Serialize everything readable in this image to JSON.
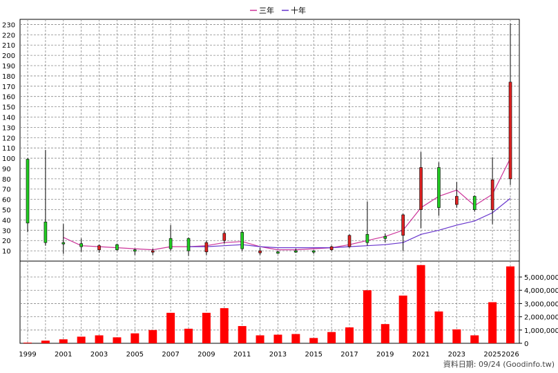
{
  "chart_data": [
    {
      "type": "candlestick",
      "legend": [
        "三年",
        "十年"
      ],
      "legend_position": "top-center",
      "grid": true,
      "ylim": [
        0,
        235
      ],
      "y_ticks": [
        10,
        20,
        30,
        40,
        50,
        60,
        70,
        80,
        90,
        100,
        110,
        120,
        130,
        140,
        150,
        160,
        170,
        180,
        190,
        200,
        210,
        220,
        230
      ],
      "x": [
        1999,
        2000,
        2001,
        2002,
        2003,
        2004,
        2005,
        2006,
        2007,
        2008,
        2009,
        2010,
        2011,
        2012,
        2013,
        2014,
        2015,
        2016,
        2017,
        2018,
        2019,
        2020,
        2021,
        2022,
        2023,
        2024,
        2025,
        2026
      ],
      "x_tick_labels": [
        "1999",
        "2001",
        "2003",
        "2005",
        "2007",
        "2009",
        "2011",
        "2013",
        "2015",
        "2017",
        "2019",
        "2021",
        "2023",
        "2025",
        "2026"
      ],
      "candles": [
        {
          "x": 1999,
          "open": 37,
          "high": 100,
          "low": 28,
          "close": 99
        },
        {
          "x": 2000,
          "open": 18,
          "high": 108,
          "low": 15,
          "close": 38
        },
        {
          "x": 2001,
          "open": 18,
          "high": 36,
          "low": 7,
          "close": 18
        },
        {
          "x": 2002,
          "open": 14,
          "high": 22,
          "low": 9,
          "close": 17
        },
        {
          "x": 2003,
          "open": 15,
          "high": 16,
          "low": 8,
          "close": 11
        },
        {
          "x": 2004,
          "open": 11,
          "high": 17,
          "low": 10,
          "close": 16
        },
        {
          "x": 2005,
          "open": 11,
          "high": 12,
          "low": 6,
          "close": 11
        },
        {
          "x": 2006,
          "open": 10,
          "high": 12,
          "low": 6,
          "close": 9
        },
        {
          "x": 2007,
          "open": 12,
          "high": 35,
          "low": 10,
          "close": 22
        },
        {
          "x": 2008,
          "open": 10,
          "high": 23,
          "low": 5,
          "close": 22
        },
        {
          "x": 2009,
          "open": 18,
          "high": 20,
          "low": 6,
          "close": 9
        },
        {
          "x": 2010,
          "open": 27,
          "high": 29,
          "low": 17,
          "close": 20
        },
        {
          "x": 2011,
          "open": 12,
          "high": 30,
          "low": 10,
          "close": 28
        },
        {
          "x": 2012,
          "open": 10,
          "high": 13,
          "low": 6,
          "close": 8
        },
        {
          "x": 2013,
          "open": 9,
          "high": 10,
          "low": 7,
          "close": 9
        },
        {
          "x": 2014,
          "open": 10,
          "high": 12,
          "low": 8,
          "close": 10
        },
        {
          "x": 2015,
          "open": 10,
          "high": 11,
          "low": 7,
          "close": 10
        },
        {
          "x": 2016,
          "open": 14,
          "high": 15,
          "low": 10,
          "close": 11
        },
        {
          "x": 2017,
          "open": 25,
          "high": 26,
          "low": 13,
          "close": 14
        },
        {
          "x": 2018,
          "open": 18,
          "high": 58,
          "low": 15,
          "close": 26
        },
        {
          "x": 2019,
          "open": 22,
          "high": 27,
          "low": 18,
          "close": 24
        },
        {
          "x": 2020,
          "open": 45,
          "high": 46,
          "low": 10,
          "close": 25
        },
        {
          "x": 2021,
          "open": 91,
          "high": 106,
          "low": 32,
          "close": 50
        },
        {
          "x": 2022,
          "open": 52,
          "high": 96,
          "low": 44,
          "close": 91
        },
        {
          "x": 2023,
          "open": 63,
          "high": 77,
          "low": 52,
          "close": 55
        },
        {
          "x": 2024,
          "open": 50,
          "high": 64,
          "low": 48,
          "close": 63
        },
        {
          "x": 2025,
          "open": 79,
          "high": 101,
          "low": 36,
          "close": 50
        },
        {
          "x": 2026,
          "open": 174,
          "high": 231,
          "low": 74,
          "close": 80
        }
      ],
      "series": [
        {
          "name": "三年",
          "color": "#cc3399",
          "x": [
            2001,
            2002,
            2003,
            2004,
            2005,
            2006,
            2007,
            2008,
            2009,
            2010,
            2011,
            2012,
            2013,
            2014,
            2015,
            2016,
            2017,
            2018,
            2019,
            2020,
            2021,
            2022,
            2023,
            2024,
            2025,
            2026
          ],
          "values": [
            23,
            15,
            14,
            13,
            12,
            11,
            14,
            14,
            15,
            18,
            19,
            14,
            11,
            11,
            12,
            13,
            16,
            20,
            24,
            30,
            52,
            63,
            69,
            54,
            65,
            100
          ]
        },
        {
          "name": "十年",
          "color": "#6633cc",
          "x": [
            2008,
            2009,
            2010,
            2011,
            2012,
            2013,
            2014,
            2015,
            2016,
            2017,
            2018,
            2019,
            2020,
            2021,
            2022,
            2023,
            2024,
            2025,
            2026
          ],
          "values": [
            14,
            14,
            15,
            16,
            14,
            13,
            13,
            13,
            13,
            14,
            15,
            16,
            18,
            26,
            30,
            35,
            39,
            47,
            61
          ]
        }
      ],
      "up_color": "#22cc22",
      "down_color": "#dd2222"
    },
    {
      "type": "bar",
      "x": [
        1999,
        2000,
        2001,
        2002,
        2003,
        2004,
        2005,
        2006,
        2007,
        2008,
        2009,
        2010,
        2011,
        2012,
        2013,
        2014,
        2015,
        2016,
        2017,
        2018,
        2019,
        2020,
        2021,
        2022,
        2023,
        2024,
        2025,
        2026
      ],
      "values": [
        50000,
        200000,
        300000,
        500000,
        600000,
        450000,
        750000,
        1000000,
        2300000,
        1100000,
        2300000,
        2650000,
        1300000,
        600000,
        650000,
        700000,
        400000,
        850000,
        1200000,
        4000000,
        1450000,
        3600000,
        5900000,
        2400000,
        1050000,
        600000,
        3100000,
        5800000
      ],
      "ylim": [
        0,
        6200000
      ],
      "y_tick_labels": [
        "0",
        "1,000,000",
        "2,000,000",
        "3,000,000",
        "4,000,000",
        "5,000,000"
      ],
      "color": "#ff0000",
      "grid": true
    }
  ],
  "source_note": "資料日期: 09/24  (Goodinfo.tw)"
}
